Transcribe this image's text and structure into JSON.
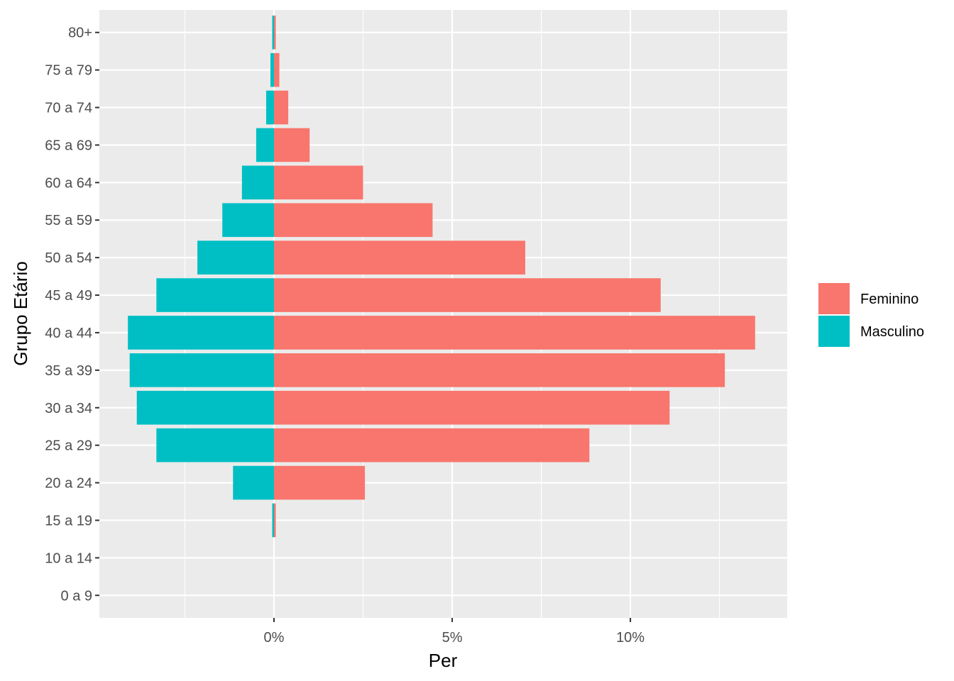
{
  "chart_data": {
    "type": "bar",
    "orientation": "horizontal",
    "xlabel": "Per",
    "ylabel": "Grupo Etário",
    "categories": [
      "0 a 9",
      "10 a 14",
      "15 a 19",
      "20 a 24",
      "25 a 29",
      "30 a 34",
      "35 a 39",
      "40 a 44",
      "45 a 49",
      "50 a 54",
      "55 a 59",
      "60 a 64",
      "65 a 69",
      "70 a 74",
      "75 a 79",
      "80+"
    ],
    "series": [
      {
        "name": "Feminino",
        "color": "#F8766D",
        "values": [
          0,
          0,
          0.05,
          2.55,
          8.85,
          11.1,
          12.65,
          13.5,
          10.85,
          7.05,
          4.45,
          2.5,
          1.0,
          0.4,
          0.15,
          0.05
        ]
      },
      {
        "name": "Masculino",
        "color": "#00BFC4",
        "values": [
          0,
          0,
          -0.05,
          -1.15,
          -3.3,
          -3.85,
          -4.05,
          -4.1,
          -3.3,
          -2.15,
          -1.45,
          -0.9,
          -0.5,
          -0.22,
          -0.1,
          -0.05
        ]
      }
    ],
    "xlim": [
      -4.9,
      14.4
    ],
    "xticks": [
      0,
      5,
      10
    ],
    "xtick_labels": [
      "0%",
      "5%",
      "10%"
    ],
    "grid": true,
    "legend": "right"
  }
}
